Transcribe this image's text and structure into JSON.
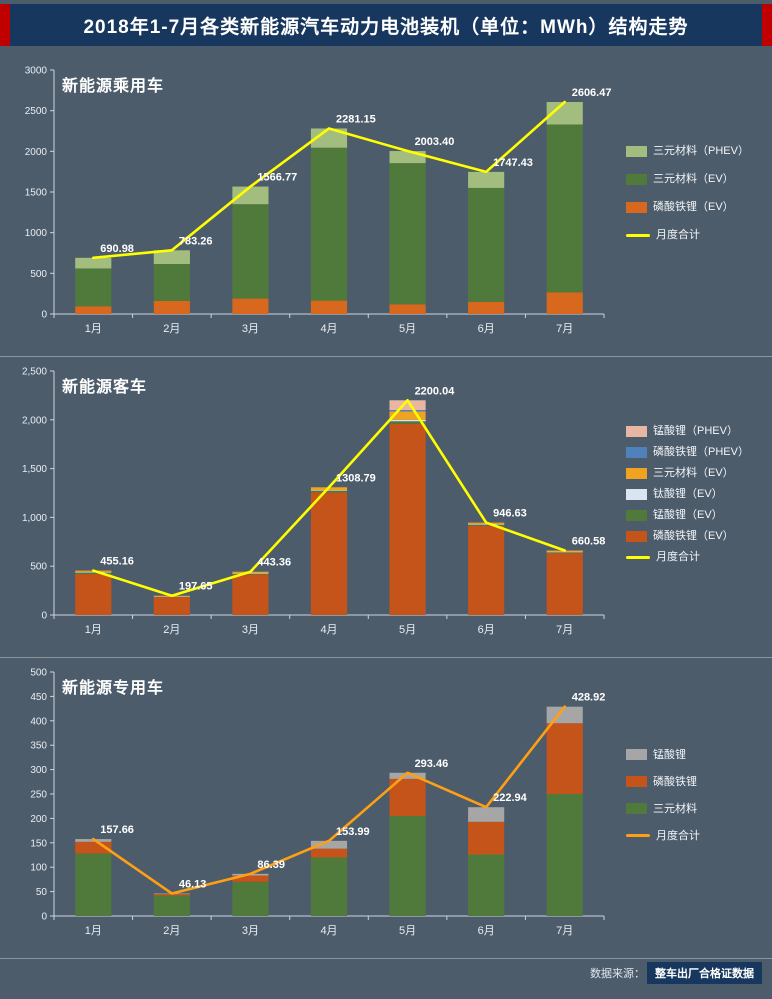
{
  "page": {
    "title": "2018年1-7月各类新能源汽车动力电池装机（单位：MWh）结构走势",
    "source": {
      "label": "数据来源：",
      "value": "整车出厂合格证数据"
    },
    "colors": {
      "background": "#4d5c6b",
      "title_bg": "#17375e",
      "title_accent": "#c00000"
    }
  },
  "chart_data": [
    {
      "type": "bar",
      "stacked": true,
      "title": "新能源乘用车",
      "categories": [
        "1月",
        "2月",
        "3月",
        "4月",
        "5月",
        "6月",
        "7月"
      ],
      "ylim": [
        0,
        3000
      ],
      "yticks": [
        {
          "value": 0,
          "label": "0"
        },
        {
          "value": 500,
          "label": "500"
        },
        {
          "value": 1000,
          "label": "1000"
        },
        {
          "value": 1500,
          "label": "1500"
        },
        {
          "value": 2000,
          "label": "2000"
        },
        {
          "value": 2500,
          "label": "2500"
        },
        {
          "value": 3000,
          "label": "3000"
        }
      ],
      "series": [
        {
          "name": "磷酸铁锂（EV）",
          "color": "#d8681d",
          "values": [
            95,
            160,
            190,
            165,
            120,
            150,
            265
          ]
        },
        {
          "name": "三元材料（EV）",
          "color": "#4f7a3c",
          "values": [
            465,
            455,
            1160,
            1880,
            1735,
            1400,
            2065
          ]
        },
        {
          "name": "三元材料（PHEV）",
          "color": "#a3bd7e",
          "values": [
            130.98,
            168.26,
            216.77,
            236.15,
            148.4,
            197.43,
            276.47
          ]
        }
      ],
      "line": {
        "name": "月度合计",
        "color": "#ffff00",
        "values": [
          690.98,
          783.26,
          1566.77,
          2281.15,
          2003.4,
          1747.43,
          2606.47
        ],
        "labels": [
          "690.98",
          "783.26",
          "1566.77",
          "2281.15",
          "2003.40",
          "1747.43",
          "2606.47"
        ]
      },
      "legend": [
        {
          "label": "三元材料（PHEV）",
          "type": "rect",
          "color": "#a3bd7e"
        },
        {
          "label": "三元材料（EV）",
          "type": "rect",
          "color": "#4f7a3c"
        },
        {
          "label": "磷酸铁锂（EV）",
          "type": "rect",
          "color": "#d8681d"
        },
        {
          "label": "月度合计",
          "type": "line",
          "color": "#ffff00"
        }
      ],
      "legend_position": "right"
    },
    {
      "type": "bar",
      "stacked": true,
      "title": "新能源客车",
      "categories": [
        "1月",
        "2月",
        "3月",
        "4月",
        "5月",
        "6月",
        "7月"
      ],
      "ylim": [
        0,
        2500
      ],
      "yticks": [
        {
          "value": 0,
          "label": "0"
        },
        {
          "value": 500,
          "label": "500"
        },
        {
          "value": 1000,
          "label": "1,000"
        },
        {
          "value": 1500,
          "label": "1,500"
        },
        {
          "value": 2000,
          "label": "2,000"
        },
        {
          "value": 2500,
          "label": "2,500"
        }
      ],
      "series": [
        {
          "name": "磷酸铁锂（EV）",
          "color": "#c4541a",
          "values": [
            420,
            185,
            415,
            1255,
            1960,
            915,
            635
          ]
        },
        {
          "name": "锰酸锂（EV）",
          "color": "#4f7a3c",
          "values": [
            20,
            8,
            12,
            18,
            25,
            15,
            12
          ]
        },
        {
          "name": "钛酸锂（EV）",
          "color": "#dbe5f1",
          "values": [
            2,
            0.65,
            2,
            5,
            15,
            3,
            2
          ]
        },
        {
          "name": "三元材料（EV）",
          "color": "#efa321",
          "values": [
            13.16,
            4,
            14.36,
            30.79,
            85,
            13.63,
            11.58
          ]
        },
        {
          "name": "磷酸铁锂（PHEV）",
          "color": "#4f81bd",
          "values": [
            0,
            0,
            0,
            0,
            15,
            0,
            0
          ]
        },
        {
          "name": "锰酸锂（PHEV）",
          "color": "#e7b7a3",
          "values": [
            0,
            0,
            0,
            0,
            100.04,
            0,
            0
          ]
        }
      ],
      "line": {
        "name": "月度合计",
        "color": "#ffff00",
        "values": [
          455.16,
          197.65,
          443.36,
          1308.79,
          2200.04,
          946.63,
          660.58
        ],
        "labels": [
          "455.16",
          "197.65",
          "443.36",
          "1308.79",
          "2200.04",
          "946.63",
          "660.58"
        ]
      },
      "legend": [
        {
          "label": "锰酸锂（PHEV）",
          "type": "rect",
          "color": "#e7b7a3"
        },
        {
          "label": "磷酸铁锂（PHEV）",
          "type": "rect",
          "color": "#4f81bd"
        },
        {
          "label": "三元材料（EV）",
          "type": "rect",
          "color": "#efa321"
        },
        {
          "label": "钛酸锂（EV）",
          "type": "rect",
          "color": "#dbe5f1"
        },
        {
          "label": "锰酸锂（EV）",
          "type": "rect",
          "color": "#4f7a3c"
        },
        {
          "label": "磷酸铁锂（EV）",
          "type": "rect",
          "color": "#c4541a"
        },
        {
          "label": "月度合计",
          "type": "line",
          "color": "#ffff00"
        }
      ],
      "legend_position": "right"
    },
    {
      "type": "bar",
      "stacked": true,
      "title": "新能源专用车",
      "categories": [
        "1月",
        "2月",
        "3月",
        "4月",
        "5月",
        "6月",
        "7月"
      ],
      "ylim": [
        0,
        500
      ],
      "yticks": [
        {
          "value": 0,
          "label": "0"
        },
        {
          "value": 50,
          "label": "50"
        },
        {
          "value": 100,
          "label": "100"
        },
        {
          "value": 150,
          "label": "150"
        },
        {
          "value": 200,
          "label": "200"
        },
        {
          "value": 250,
          "label": "250"
        },
        {
          "value": 300,
          "label": "300"
        },
        {
          "value": 350,
          "label": "350"
        },
        {
          "value": 400,
          "label": "400"
        },
        {
          "value": 450,
          "label": "450"
        },
        {
          "value": 500,
          "label": "500"
        }
      ],
      "series": [
        {
          "name": "三元材料",
          "color": "#4f7a3c",
          "values": [
            128,
            42,
            70,
            120,
            205,
            126,
            250
          ]
        },
        {
          "name": "磷酸铁锂",
          "color": "#c4541a",
          "values": [
            24,
            3.2,
            13,
            18,
            76,
            67,
            145
          ]
        },
        {
          "name": "锰酸锂",
          "color": "#a6a6a6",
          "values": [
            5.66,
            0.93,
            3.39,
            15.99,
            12.46,
            29.94,
            33.92
          ]
        }
      ],
      "line": {
        "name": "月度合计",
        "color": "#ffa014",
        "values": [
          157.66,
          46.13,
          86.39,
          153.99,
          293.46,
          222.94,
          428.92
        ],
        "labels": [
          "157.66",
          "46.13",
          "86.39",
          "153.99",
          "293.46",
          "222.94",
          "428.92"
        ]
      },
      "legend": [
        {
          "label": "锰酸锂",
          "type": "rect",
          "color": "#a6a6a6"
        },
        {
          "label": "磷酸铁锂",
          "type": "rect",
          "color": "#c4541a"
        },
        {
          "label": "三元材料",
          "type": "rect",
          "color": "#4f7a3c"
        },
        {
          "label": "月度合计",
          "type": "line",
          "color": "#ffa014"
        }
      ],
      "legend_position": "right"
    }
  ]
}
